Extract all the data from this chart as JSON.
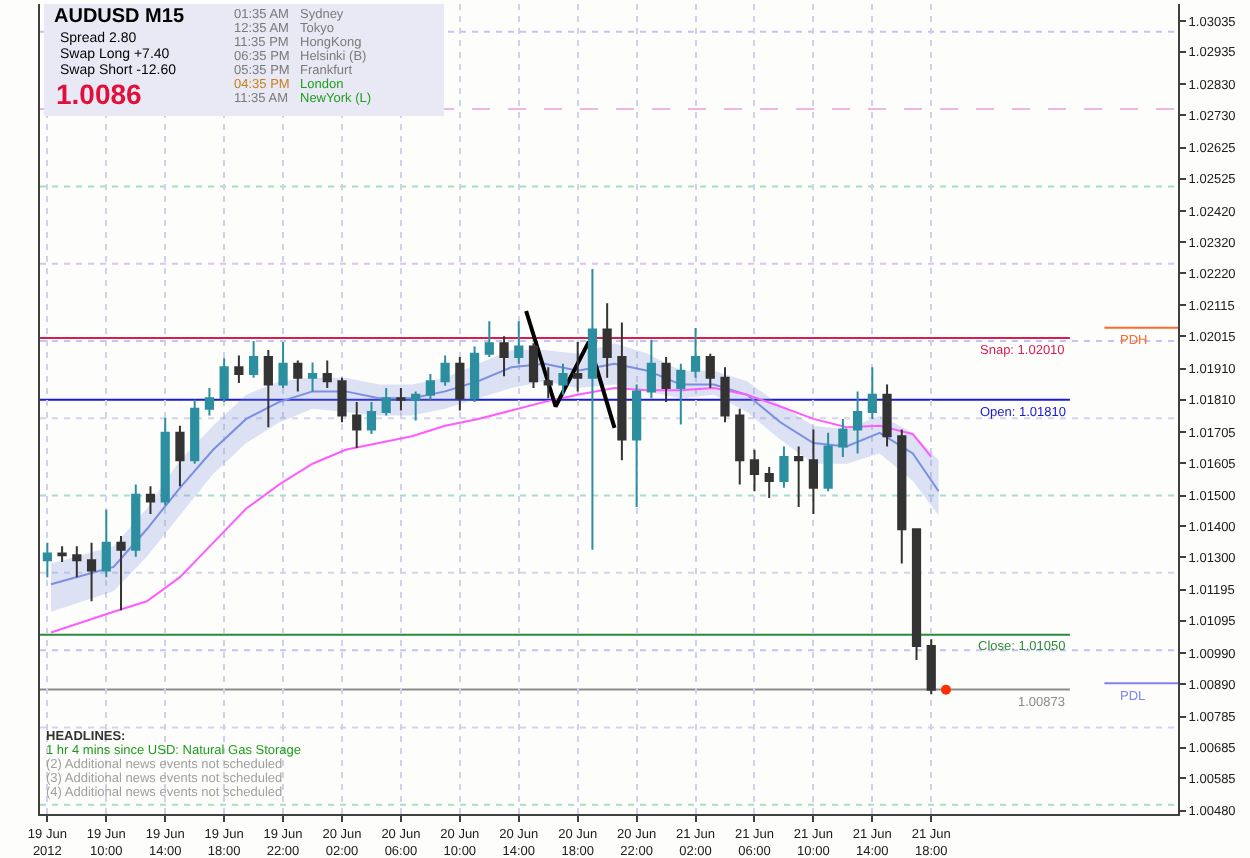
{
  "chart_data": {
    "type": "candlestick",
    "title": "AUDUSD M15",
    "x": [
      "2012-06-19T06:00",
      "2012-06-19T07:00",
      "2012-06-19T08:00",
      "2012-06-19T09:00",
      "2012-06-19T10:00",
      "2012-06-19T11:00",
      "2012-06-19T12:00",
      "2012-06-19T13:00",
      "2012-06-19T14:00",
      "2012-06-19T15:00",
      "2012-06-19T16:00",
      "2012-06-19T17:00",
      "2012-06-19T18:00",
      "2012-06-19T19:00",
      "2012-06-19T20:00",
      "2012-06-19T21:00",
      "2012-06-19T22:00",
      "2012-06-19T23:00",
      "2012-06-20T00:00",
      "2012-06-20T01:00",
      "2012-06-20T02:00",
      "2012-06-20T03:00",
      "2012-06-20T04:00",
      "2012-06-20T05:00",
      "2012-06-20T06:00",
      "2012-06-20T07:00",
      "2012-06-20T08:00",
      "2012-06-20T09:00",
      "2012-06-20T10:00",
      "2012-06-20T11:00",
      "2012-06-20T12:00",
      "2012-06-20T13:00",
      "2012-06-20T14:00",
      "2012-06-20T15:00",
      "2012-06-20T16:00",
      "2012-06-20T17:00",
      "2012-06-20T18:00",
      "2012-06-20T19:00",
      "2012-06-20T20:00",
      "2012-06-20T21:00",
      "2012-06-20T22:00",
      "2012-06-20T23:00",
      "2012-06-21T00:00",
      "2012-06-21T01:00",
      "2012-06-21T02:00",
      "2012-06-21T03:00",
      "2012-06-21T04:00",
      "2012-06-21T05:00",
      "2012-06-21T06:00",
      "2012-06-21T07:00",
      "2012-06-21T08:00",
      "2012-06-21T09:00",
      "2012-06-21T10:00",
      "2012-06-21T11:00",
      "2012-06-21T12:00",
      "2012-06-21T13:00",
      "2012-06-21T14:00",
      "2012-06-21T15:00",
      "2012-06-21T16:00",
      "2012-06-21T17:00",
      "2012-06-21T18:00"
    ],
    "ohlc": [
      [
        1.01291,
        1.01347,
        1.01236,
        1.01313
      ],
      [
        1.01313,
        1.01336,
        1.01285,
        1.01307
      ],
      [
        1.01307,
        1.01336,
        1.01236,
        1.01291
      ],
      [
        1.01291,
        1.01347,
        1.01158,
        1.01258
      ],
      [
        1.01258,
        1.01454,
        1.01236,
        1.01347
      ],
      [
        1.01347,
        1.01369,
        1.01129,
        1.01325
      ],
      [
        1.01325,
        1.01536,
        1.01302,
        1.01503
      ],
      [
        1.01503,
        1.0153,
        1.0144,
        1.01481
      ],
      [
        1.01481,
        1.01752,
        1.01469,
        1.01703
      ],
      [
        1.01703,
        1.01726,
        1.0153,
        1.01614
      ],
      [
        1.01614,
        1.0181,
        1.01603,
        1.01781
      ],
      [
        1.01781,
        1.01848,
        1.01759,
        1.01815
      ],
      [
        1.01815,
        1.01944,
        1.01803,
        1.01915
      ],
      [
        1.01915,
        1.01953,
        1.01864,
        1.01893
      ],
      [
        1.01893,
        1.02,
        1.01881,
        1.01948
      ],
      [
        1.01948,
        1.01971,
        1.01721,
        1.01859
      ],
      [
        1.01859,
        1.01997,
        1.01848,
        1.01926
      ],
      [
        1.01926,
        1.01937,
        1.01837,
        1.01881
      ],
      [
        1.01881,
        1.0193,
        1.01837,
        1.01893
      ],
      [
        1.01893,
        1.01937,
        1.01848,
        1.0187
      ],
      [
        1.0187,
        1.01881,
        1.01737,
        1.01759
      ],
      [
        1.01759,
        1.01803,
        1.01654,
        1.01714
      ],
      [
        1.01714,
        1.01803,
        1.01699,
        1.0177
      ],
      [
        1.0177,
        1.01848,
        1.01759,
        1.01815
      ],
      [
        1.01815,
        1.01848,
        1.01775,
        1.0181
      ],
      [
        1.0181,
        1.01837,
        1.01743,
        1.01826
      ],
      [
        1.01826,
        1.01893,
        1.0181,
        1.0187
      ],
      [
        1.0187,
        1.01953,
        1.01855,
        1.01926
      ],
      [
        1.01926,
        1.01948,
        1.01775,
        1.01815
      ],
      [
        1.01815,
        1.01982,
        1.01803,
        1.01959
      ],
      [
        1.01959,
        1.02064,
        1.01948,
        1.01993
      ],
      [
        1.01993,
        1.02015,
        1.01886,
        1.01948
      ],
      [
        1.01948,
        1.02064,
        1.01926,
        1.01982
      ],
      [
        1.01982,
        1.01993,
        1.01848,
        1.0187
      ],
      [
        1.0187,
        1.01915,
        1.01815,
        1.01859
      ],
      [
        1.01859,
        1.01926,
        1.01826,
        1.01893
      ],
      [
        1.01893,
        1.01997,
        1.01837,
        1.01881
      ],
      [
        1.01881,
        1.02233,
        1.01325,
        1.02037
      ],
      [
        1.02037,
        1.02122,
        1.01881,
        1.01948
      ],
      [
        1.01948,
        1.0206,
        1.01614,
        1.01681
      ],
      [
        1.01681,
        1.01859,
        1.01463,
        1.01837
      ],
      [
        1.01837,
        1.02004,
        1.01815,
        1.01926
      ],
      [
        1.01926,
        1.01948,
        1.01803,
        1.01848
      ],
      [
        1.01848,
        1.01926,
        1.0173,
        1.01904
      ],
      [
        1.01904,
        1.02042,
        1.01881,
        1.01948
      ],
      [
        1.01948,
        1.01959,
        1.01848,
        1.01881
      ],
      [
        1.01881,
        1.01915,
        1.01737,
        1.01759
      ],
      [
        1.01759,
        1.01781,
        1.01536,
        1.01614
      ],
      [
        1.01614,
        1.01648,
        1.01514,
        1.0157
      ],
      [
        1.0157,
        1.01592,
        1.01492,
        1.01547
      ],
      [
        1.01547,
        1.01659,
        1.01525,
        1.01625
      ],
      [
        1.01625,
        1.01659,
        1.01463,
        1.01614
      ],
      [
        1.01614,
        1.01714,
        1.0144,
        1.01525
      ],
      [
        1.01525,
        1.01703,
        1.01514,
        1.01659
      ],
      [
        1.01659,
        1.01748,
        1.01625,
        1.01714
      ],
      [
        1.01714,
        1.01837,
        1.01636,
        1.0177
      ],
      [
        1.0177,
        1.01915,
        1.01748,
        1.01826
      ],
      [
        1.01826,
        1.01859,
        1.01659,
        1.01692
      ],
      [
        1.01692,
        1.01714,
        1.0128,
        1.01391
      ],
      [
        1.01391,
        1.01391,
        1.00968,
        1.01013
      ],
      [
        1.01013,
        1.01035,
        1.00857,
        1.00872
      ]
    ],
    "colors": [
      "#2b8fa0",
      "#333333",
      "#333333",
      "#333333",
      "#2b8fa0",
      "#333333",
      "#2b8fa0",
      "#333333",
      "#2b8fa0",
      "#333333",
      "#2b8fa0",
      "#2b8fa0",
      "#2b8fa0",
      "#333333",
      "#2b8fa0",
      "#333333",
      "#2b8fa0",
      "#333333",
      "#2b8fa0",
      "#333333",
      "#333333",
      "#333333",
      "#2b8fa0",
      "#2b8fa0",
      "#333333",
      "#2b8fa0",
      "#2b8fa0",
      "#2b8fa0",
      "#333333",
      "#2b8fa0",
      "#2b8fa0",
      "#333333",
      "#2b8fa0",
      "#333333",
      "#333333",
      "#2b8fa0",
      "#333333",
      "#2b8fa0",
      "#333333",
      "#333333",
      "#2b8fa0",
      "#2b8fa0",
      "#333333",
      "#2b8fa0",
      "#2b8fa0",
      "#333333",
      "#333333",
      "#333333",
      "#333333",
      "#333333",
      "#2b8fa0",
      "#333333",
      "#333333",
      "#2b8fa0",
      "#2b8fa0",
      "#2b8fa0",
      "#2b8fa0",
      "#333333",
      "#333333",
      "#333333",
      "#333333"
    ],
    "xlim": [
      "2012-06-19T05:30",
      "2012-06-22T10:45"
    ],
    "xticks": [
      {
        "value": "2012-06-19T06:00",
        "label": "19 Jun 2012"
      },
      {
        "value": "2012-06-19T10:00",
        "label": "19 Jun 10:00"
      },
      {
        "value": "2012-06-19T14:00",
        "label": "19 Jun 14:00"
      },
      {
        "value": "2012-06-19T18:00",
        "label": "19 Jun 18:00"
      },
      {
        "value": "2012-06-19T22:00",
        "label": "19 Jun 22:00"
      },
      {
        "value": "2012-06-20T02:00",
        "label": "20 Jun 02:00"
      },
      {
        "value": "2012-06-20T06:00",
        "label": "20 Jun 06:00"
      },
      {
        "value": "2012-06-20T10:00",
        "label": "20 Jun 10:00"
      },
      {
        "value": "2012-06-20T14:00",
        "label": "20 Jun 14:00"
      },
      {
        "value": "2012-06-20T18:00",
        "label": "20 Jun 18:00"
      },
      {
        "value": "2012-06-20T22:00",
        "label": "20 Jun 22:00"
      },
      {
        "value": "2012-06-21T02:00",
        "label": "21 Jun 02:00"
      },
      {
        "value": "2012-06-21T06:00",
        "label": "21 Jun 06:00"
      },
      {
        "value": "2012-06-21T10:00",
        "label": "21 Jun 10:00"
      },
      {
        "value": "2012-06-21T14:00",
        "label": "21 Jun 14:00"
      },
      {
        "value": "2012-06-21T18:00",
        "label": "21 Jun 18:00"
      }
    ],
    "ylim": [
      1.0047,
      1.0309
    ],
    "yticks": [
      1.03035,
      1.02935,
      {
        "value": 1.0283,
        "label": "1.02830"
      },
      {
        "value": 1.0273,
        "label": "1.02730"
      },
      1.02625,
      1.02525,
      {
        "value": 1.0242,
        "label": "1.02420"
      },
      {
        "value": 1.0232,
        "label": "1.02320"
      },
      {
        "value": 1.0222,
        "label": "1.02220"
      },
      1.02115,
      1.02015,
      {
        "value": 1.0191,
        "label": "1.01910"
      },
      {
        "value": 1.0181,
        "label": "1.01810"
      },
      1.01705,
      1.01605,
      {
        "value": 1.015,
        "label": "1.01500"
      },
      {
        "value": 1.014,
        "label": "1.01400"
      },
      {
        "value": 1.013,
        "label": "1.01300"
      },
      1.01195,
      1.01095,
      {
        "value": 1.0099,
        "label": "1.00990"
      },
      {
        "value": 1.0089,
        "label": "1.00890"
      },
      1.00785,
      1.00685,
      1.00585,
      {
        "value": 1.0048,
        "label": "1.00480"
      }
    ],
    "grid": "x",
    "ref_lines": [
      {
        "axis": "y",
        "value": 1.03,
        "color": "#c4c4f2",
        "line_style": "dotted"
      },
      {
        "axis": "y",
        "value": 1.0275,
        "color": "#f2b4e2",
        "line_style": "dashed"
      },
      {
        "axis": "y",
        "value": 1.025,
        "color": "#a6e0c0",
        "line_style": "dotted"
      },
      {
        "axis": "y",
        "value": 1.0225,
        "color": "#d8c4ec",
        "line_style": "dotted"
      },
      {
        "axis": "y",
        "value": 1.02,
        "color": "#c4c4f2",
        "line_style": "dotted"
      },
      {
        "axis": "y",
        "value": 1.0175,
        "color": "#d4d4ec",
        "line_style": "dotted"
      },
      {
        "axis": "y",
        "value": 1.015,
        "color": "#a6dcd4",
        "line_style": "dotted"
      },
      {
        "axis": "y",
        "value": 1.0125,
        "color": "#d4d4ec",
        "line_style": "dotted"
      },
      {
        "axis": "y",
        "value": 1.01,
        "color": "#c4c4f2",
        "line_style": "dotted"
      },
      {
        "axis": "y",
        "value": 1.0075,
        "color": "#d4d4ec",
        "line_style": "dotted"
      },
      {
        "axis": "y",
        "value": 1.005,
        "color": "#a6e0c0",
        "line_style": "dotted"
      },
      {
        "axis": "y",
        "value": 1.0201,
        "label": "Snap: 1.02010",
        "color": "#d81e50"
      },
      {
        "axis": "y",
        "value": 1.0181,
        "label": "Open: 1.01810",
        "color": "#1a1ad0"
      },
      {
        "axis": "y",
        "value": 1.0105,
        "label": "Close: 1.01050",
        "color": "#2e8b3e"
      },
      {
        "axis": "y",
        "value": 1.00873,
        "label": "1.00873",
        "color": "#8c8c8c"
      }
    ],
    "series": [
      {
        "type": "line",
        "color": "#7b8fe0",
        "x": [
          "2012-06-19T06:15",
          "2012-06-19T10:30",
          "2012-06-19T12:45",
          "2012-06-19T15:00",
          "2012-06-19T17:15",
          "2012-06-19T19:30",
          "2012-06-19T21:45",
          "2012-06-20T00:00",
          "2012-06-20T02:15",
          "2012-06-20T04:30",
          "2012-06-20T06:45",
          "2012-06-20T09:00",
          "2012-06-20T11:15",
          "2012-06-20T13:30",
          "2012-06-20T15:45",
          "2012-06-20T18:00",
          "2012-06-20T20:30",
          "2012-06-20T22:45",
          "2012-06-21T01:00",
          "2012-06-21T03:15",
          "2012-06-21T05:30",
          "2012-06-21T07:45",
          "2012-06-21T10:00",
          "2012-06-21T12:15",
          "2012-06-21T14:30",
          "2012-06-21T16:45",
          "2012-06-21T18:30"
        ],
        "values": [
          1.01213,
          1.01269,
          1.01391,
          1.01525,
          1.01648,
          1.01748,
          1.01803,
          1.01837,
          1.01837,
          1.01815,
          1.01815,
          1.01837,
          1.0187,
          1.01915,
          1.01926,
          1.01904,
          1.01926,
          1.01904,
          1.01859,
          1.01859,
          1.01826,
          1.01737,
          1.0167,
          1.01659,
          1.01703,
          1.01636,
          1.01514
        ],
        "lower": [
          1.01124,
          1.01191,
          1.01302,
          1.01436,
          1.0157,
          1.0167,
          1.01737,
          1.01781,
          1.0177,
          1.01759,
          1.01759,
          1.01781,
          1.01815,
          1.01848,
          1.0187,
          1.01848,
          1.01859,
          1.01837,
          1.01815,
          1.01826,
          1.0177,
          1.01681,
          1.01603,
          1.01603,
          1.01636,
          1.01547,
          1.01436
        ],
        "upper": [
          1.0128,
          1.01336,
          1.01458,
          1.01614,
          1.01726,
          1.01826,
          1.0187,
          1.01881,
          1.01881,
          1.01859,
          1.01859,
          1.01881,
          1.01926,
          1.01971,
          1.01971,
          1.01959,
          1.01993,
          1.01959,
          1.01904,
          1.01904,
          1.0187,
          1.01792,
          1.01726,
          1.01714,
          1.01759,
          1.01703,
          1.01614
        ]
      },
      {
        "type": "line",
        "color": "#ff5cff",
        "x": [
          "2012-06-19T06:15",
          "2012-06-19T10:30",
          "2012-06-19T12:45",
          "2012-06-19T15:00",
          "2012-06-19T17:15",
          "2012-06-19T19:30",
          "2012-06-19T21:45",
          "2012-06-20T00:00",
          "2012-06-20T02:15",
          "2012-06-20T04:30",
          "2012-06-20T06:45",
          "2012-06-20T09:00",
          "2012-06-20T11:15",
          "2012-06-20T13:30",
          "2012-06-20T15:45",
          "2012-06-20T18:00",
          "2012-06-20T20:30",
          "2012-06-20T22:45",
          "2012-06-21T01:00",
          "2012-06-21T03:15",
          "2012-06-21T05:30",
          "2012-06-21T07:45",
          "2012-06-21T10:00",
          "2012-06-21T12:15",
          "2012-06-21T14:30",
          "2012-06-21T16:45",
          "2012-06-21T18:00"
        ],
        "values": [
          1.01057,
          1.01124,
          1.01158,
          1.01236,
          1.01347,
          1.01458,
          1.01536,
          1.01603,
          1.01648,
          1.0167,
          1.01692,
          1.01726,
          1.01748,
          1.01775,
          1.01803,
          1.01826,
          1.01848,
          1.01841,
          1.01841,
          1.01848,
          1.01826,
          1.01788,
          1.01748,
          1.01721,
          1.01726,
          1.01699,
          1.01625
        ]
      },
      {
        "type": "line",
        "color": "#000000",
        "x": [
          "2012-06-20T14:30",
          "2012-06-20T16:30",
          "2012-06-20T18:45",
          "2012-06-20T20:30"
        ],
        "values": [
          1.02097,
          1.01788,
          1.01997,
          1.01719
        ]
      },
      {
        "type": "line",
        "name": "PDH",
        "color": "#ff6a30",
        "x": [
          "2012-06-22T05:45",
          "2012-06-22T10:45"
        ],
        "values": [
          1.02043,
          1.02043
        ]
      },
      {
        "type": "line",
        "name": "PDL",
        "color": "#8080f0",
        "x": [
          "2012-06-22T05:45",
          "2012-06-22T10:45"
        ],
        "values": [
          1.00893,
          1.00893
        ]
      },
      {
        "type": "scatter",
        "color": "#ff3000",
        "marker": "circle",
        "x": [
          "2012-06-21T19:00"
        ],
        "values": [
          1.00872
        ]
      }
    ],
    "annotations": [
      "Spread 2.80",
      "Swap Long +7.40",
      "Swap Short -12.60",
      "1.0086",
      "01:35 AM",
      "Sydney",
      "12:35 AM",
      "Tokyo",
      "11:35 PM",
      "HongKong",
      "06:35 PM",
      "Helsinki (B)",
      "05:35 PM",
      "Frankfurt",
      "04:35 PM",
      "London",
      "11:35 AM",
      "NewYork (L)",
      "HEADLINES:",
      "1 hr 4 mins since USD: Natural Gas Storage",
      "(2) Additional news events not scheduled",
      "(3) Additional news events not scheduled",
      "(4) Additional news events not scheduled"
    ]
  }
}
